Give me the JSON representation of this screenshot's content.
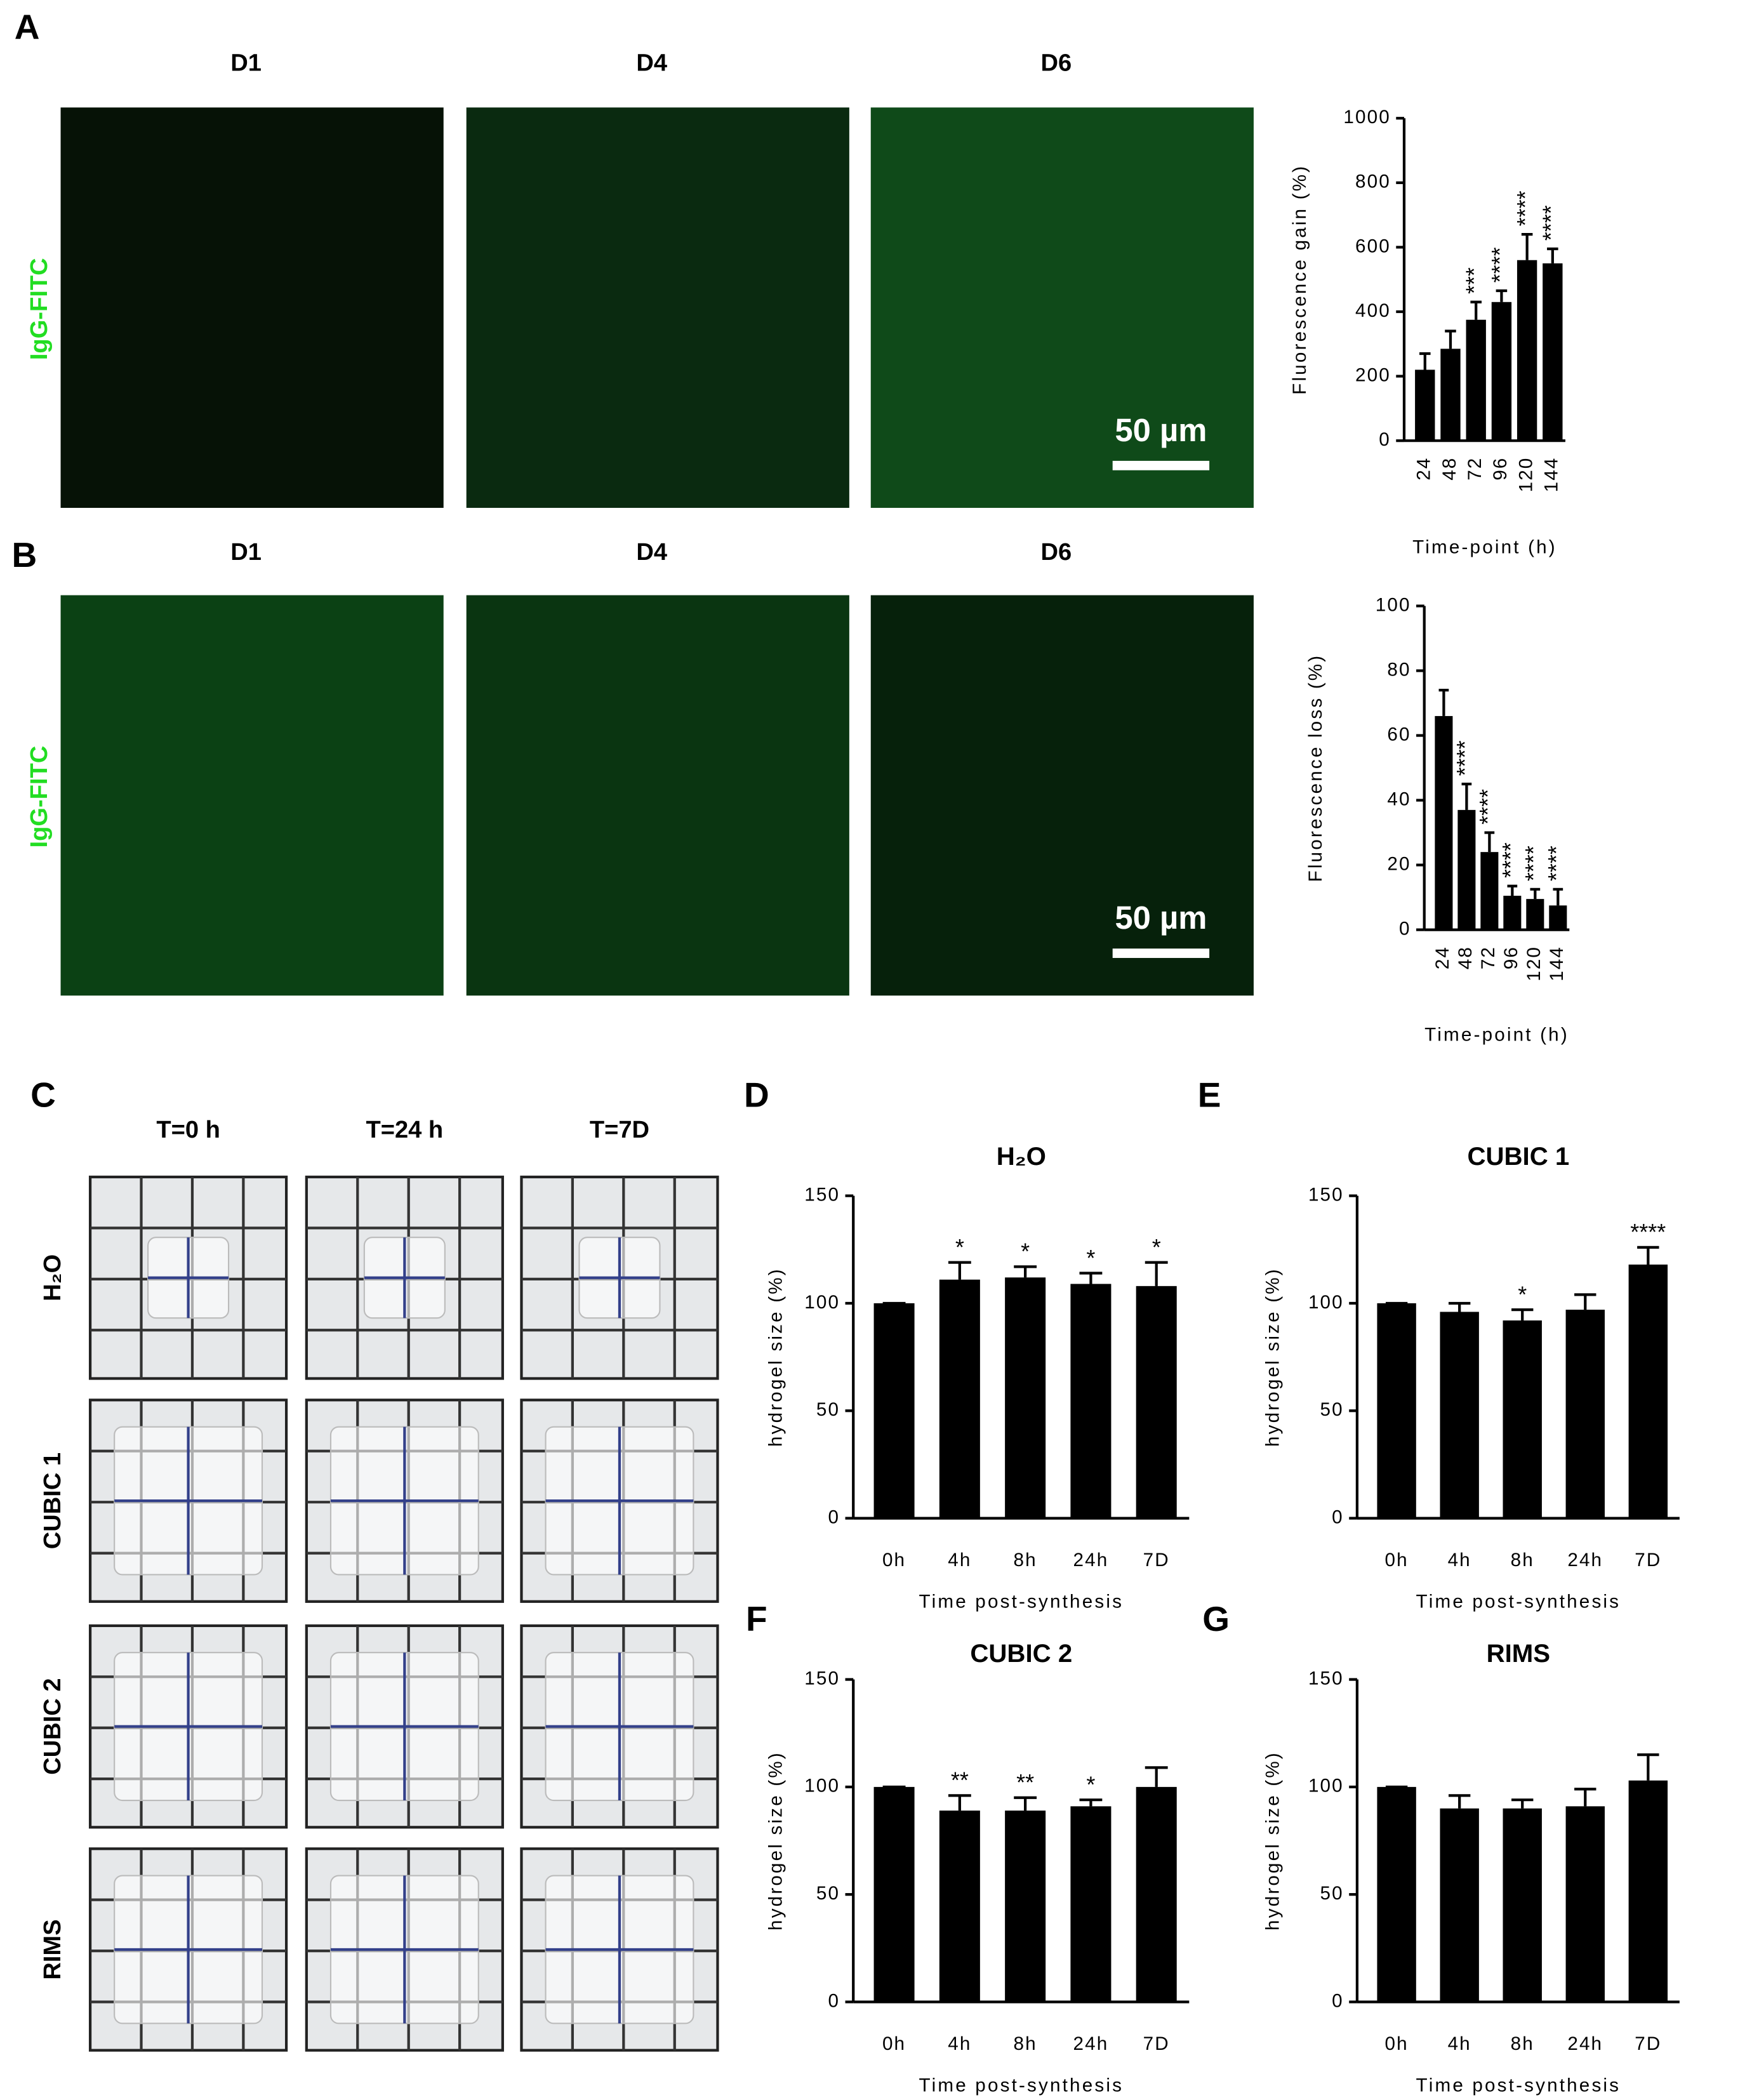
{
  "figure": {
    "panels": [
      "A",
      "B",
      "C",
      "D",
      "E",
      "F",
      "G"
    ],
    "microscopy": [
      {
        "columns": [
          "D1",
          "D4",
          "D6"
        ],
        "row_label": "IgG-FITC",
        "scale_bar": "50 µm"
      },
      {
        "columns": [
          "D1",
          "D4",
          "D6"
        ],
        "row_label": "IgG-FITC",
        "scale_bar": "50 µm"
      }
    ],
    "hydrogel": {
      "columns": [
        "T=0 h",
        "T=24 h",
        "T=7D"
      ],
      "rows": [
        "H₂O",
        "CUBIC 1",
        "CUBIC 2",
        "RIMS"
      ]
    }
  },
  "chart_data": [
    {
      "type": "bar",
      "y_label": "Fluorescence gain (%)",
      "x_label": "Time-point (h)",
      "categories": [
        "24",
        "48",
        "72",
        "96",
        "120",
        "144"
      ],
      "values": [
        220,
        285,
        375,
        430,
        560,
        550
      ],
      "errors": [
        50,
        55,
        55,
        35,
        80,
        45
      ],
      "annotations": [
        null,
        null,
        "***",
        "****",
        "****",
        "****"
      ],
      "color": "#000000",
      "ylim": [
        0,
        1000
      ],
      "yticks": [
        0,
        200,
        400,
        600,
        800,
        1000
      ]
    },
    {
      "type": "bar",
      "y_label": "Fluorescence loss (%)",
      "x_label": "Time-point (h)",
      "categories": [
        "24",
        "48",
        "72",
        "96",
        "120",
        "144"
      ],
      "values": [
        66,
        37,
        24,
        10.5,
        9.5,
        7.5
      ],
      "errors": [
        8,
        8,
        6,
        3,
        3,
        5
      ],
      "annotations": [
        null,
        "****",
        "****",
        "****",
        "****",
        "****"
      ],
      "color": "#000000",
      "ylim": [
        0,
        100
      ],
      "yticks": [
        0,
        20,
        40,
        60,
        80,
        100
      ]
    },
    {
      "type": "bar",
      "title": "H₂O",
      "y_label": "hydrogel size (%)",
      "x_label": "Time post-synthesis",
      "categories": [
        "0h",
        "4h",
        "8h",
        "24h",
        "7D"
      ],
      "values": [
        100,
        111,
        112,
        109,
        108
      ],
      "errors": [
        0,
        8,
        5,
        5,
        11
      ],
      "annotations": [
        null,
        "*",
        "*",
        "*",
        "*"
      ],
      "color": "#000000",
      "ylim": [
        0,
        150
      ],
      "yticks": [
        0,
        50,
        100,
        150
      ]
    },
    {
      "type": "bar",
      "title": "CUBIC 1",
      "y_label": "hydrogel size (%)",
      "x_label": "Time post-synthesis",
      "categories": [
        "0h",
        "4h",
        "8h",
        "24h",
        "7D"
      ],
      "values": [
        100,
        96,
        92,
        97,
        118
      ],
      "errors": [
        0,
        4,
        5,
        7,
        8
      ],
      "annotations": [
        null,
        null,
        "*",
        null,
        "****"
      ],
      "color": "#000000",
      "ylim": [
        0,
        150
      ],
      "yticks": [
        0,
        50,
        100,
        150
      ]
    },
    {
      "type": "bar",
      "title": "CUBIC 2",
      "y_label": "hydrogel size (%)",
      "x_label": "Time post-synthesis",
      "categories": [
        "0h",
        "4h",
        "8h",
        "24h",
        "7D"
      ],
      "values": [
        100,
        89,
        89,
        91,
        100
      ],
      "errors": [
        0,
        7,
        6,
        3,
        9
      ],
      "annotations": [
        null,
        "**",
        "**",
        "*",
        null
      ],
      "color": "#000000",
      "ylim": [
        0,
        150
      ],
      "yticks": [
        0,
        50,
        100,
        150
      ]
    },
    {
      "type": "bar",
      "title": "RIMS",
      "y_label": "hydrogel size (%)",
      "x_label": "Time post-synthesis",
      "categories": [
        "0h",
        "4h",
        "8h",
        "24h",
        "7D"
      ],
      "values": [
        100,
        90,
        90,
        91,
        103
      ],
      "errors": [
        0,
        6,
        4,
        8,
        12
      ],
      "annotations": [
        null,
        null,
        null,
        null,
        null
      ],
      "color": "#000000",
      "ylim": [
        0,
        150
      ],
      "yticks": [
        0,
        50,
        100,
        150
      ]
    }
  ]
}
